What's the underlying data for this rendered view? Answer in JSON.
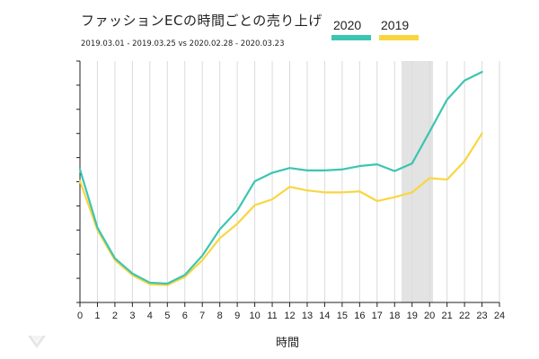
{
  "chart_data": {
    "type": "line",
    "title": "ファッションECの時間ごとの売り上げ",
    "subtitle": "2019.03.01 - 2019.03.25 vs 2020.02.28 - 2020.03.23",
    "xlabel": "時間",
    "x": [
      0,
      1,
      2,
      3,
      4,
      5,
      6,
      7,
      8,
      9,
      10,
      11,
      12,
      13,
      14,
      15,
      16,
      17,
      18,
      19,
      20,
      21,
      22,
      23
    ],
    "x_ticks": [
      0,
      1,
      2,
      3,
      4,
      5,
      6,
      7,
      8,
      9,
      10,
      11,
      12,
      13,
      14,
      15,
      16,
      17,
      18,
      19,
      20,
      21,
      22,
      23,
      24
    ],
    "xlim": [
      0,
      24
    ],
    "ylim": [
      0,
      100
    ],
    "grid": "vertical",
    "highlight_band": [
      18.4,
      20.2
    ],
    "legend_position": "top-right",
    "series": [
      {
        "name": "2020",
        "color": "#3cc5b1",
        "values": [
          55.1,
          31.0,
          18.3,
          12.0,
          8.2,
          7.8,
          11.4,
          19.4,
          30.3,
          38.1,
          50.2,
          53.7,
          55.7,
          54.7,
          54.7,
          55.1,
          56.5,
          57.2,
          54.4,
          57.6,
          70.7,
          84.0,
          91.9,
          95.5
        ]
      },
      {
        "name": "2019",
        "color": "#f9d640",
        "values": [
          50.3,
          30.0,
          17.5,
          11.3,
          7.5,
          7.2,
          10.6,
          17.5,
          26.6,
          32.6,
          40.3,
          42.7,
          47.9,
          46.4,
          45.6,
          45.6,
          46.0,
          42.0,
          43.6,
          45.6,
          51.5,
          50.9,
          58.5,
          70.0
        ]
      }
    ]
  },
  "branding": {
    "logo_icon": "v-shaped-logo"
  }
}
